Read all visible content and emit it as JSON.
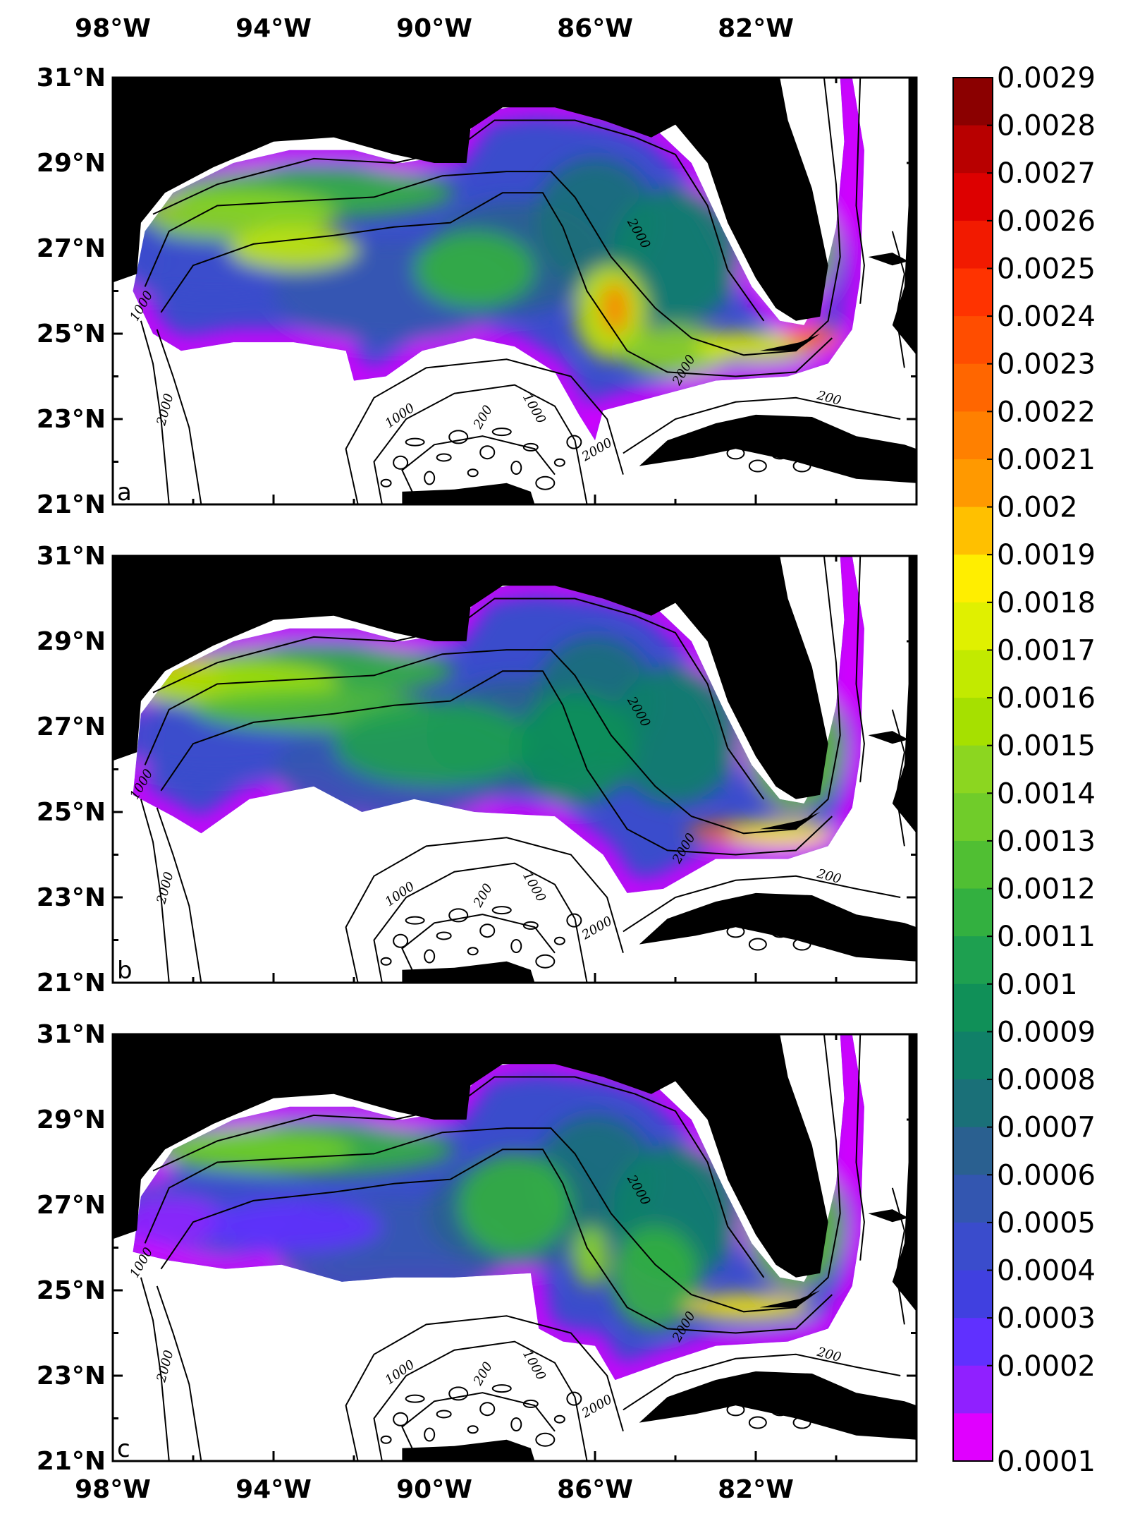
{
  "figure": {
    "x_axis_labels": [
      "98°W",
      "94°W",
      "90°W",
      "86°W",
      "82°W"
    ],
    "y_axis_labels": [
      "31°N",
      "29°N",
      "27°N",
      "25°N",
      "23°N",
      "21°N"
    ],
    "panels": [
      {
        "letter": "a"
      },
      {
        "letter": "b"
      },
      {
        "letter": "c"
      }
    ],
    "isobath_labels": [
      "1000",
      "2000",
      "200",
      "1000",
      "2000",
      "1000",
      "2000",
      "200",
      "2000"
    ]
  },
  "colorbar": {
    "labels": [
      "0.0029",
      "0.0028",
      "0.0027",
      "0.0026",
      "0.0025",
      "0.0024",
      "0.0023",
      "0.0022",
      "0.0021",
      "0.002",
      "0.0019",
      "0.0018",
      "0.0017",
      "0.0016",
      "0.0015",
      "0.0014",
      "0.0013",
      "0.0012",
      "0.0011",
      "0.001",
      "0.0009",
      "0.0008",
      "0.0007",
      "0.0006",
      "0.0005",
      "0.0004",
      "0.0003",
      "0.0002",
      "0.0001"
    ],
    "colors_top_to_bottom": [
      "#8b0000",
      "#b80000",
      "#dd0000",
      "#f21a00",
      "#ff3300",
      "#ff4d00",
      "#ff6600",
      "#ff8000",
      "#ff9900",
      "#ffc000",
      "#ffee00",
      "#e0f000",
      "#c2ea00",
      "#a6e000",
      "#8cd620",
      "#70cc2a",
      "#50bf33",
      "#33b040",
      "#1ea050",
      "#109058",
      "#108068",
      "#1a7078",
      "#2a6090",
      "#3356b0",
      "#3a4ccc",
      "#4040e0",
      "#6030ff",
      "#9020ff",
      "#e000ff"
    ]
  },
  "chart_data": {
    "type": "heatmap",
    "panels": [
      "a",
      "b",
      "c"
    ],
    "x_ticks": [
      "98°W",
      "94°W",
      "90°W",
      "86°W",
      "82°W"
    ],
    "y_ticks": [
      "31°N",
      "29°N",
      "27°N",
      "25°N",
      "23°N",
      "21°N"
    ],
    "xlim": [
      -98,
      -78
    ],
    "ylim": [
      21,
      31
    ],
    "colorbar_range": [
      0.0001,
      0.0029
    ],
    "colorbar_step": 0.0001,
    "land_color": "#000000",
    "contour_levels": [
      200,
      1000,
      2000
    ]
  }
}
